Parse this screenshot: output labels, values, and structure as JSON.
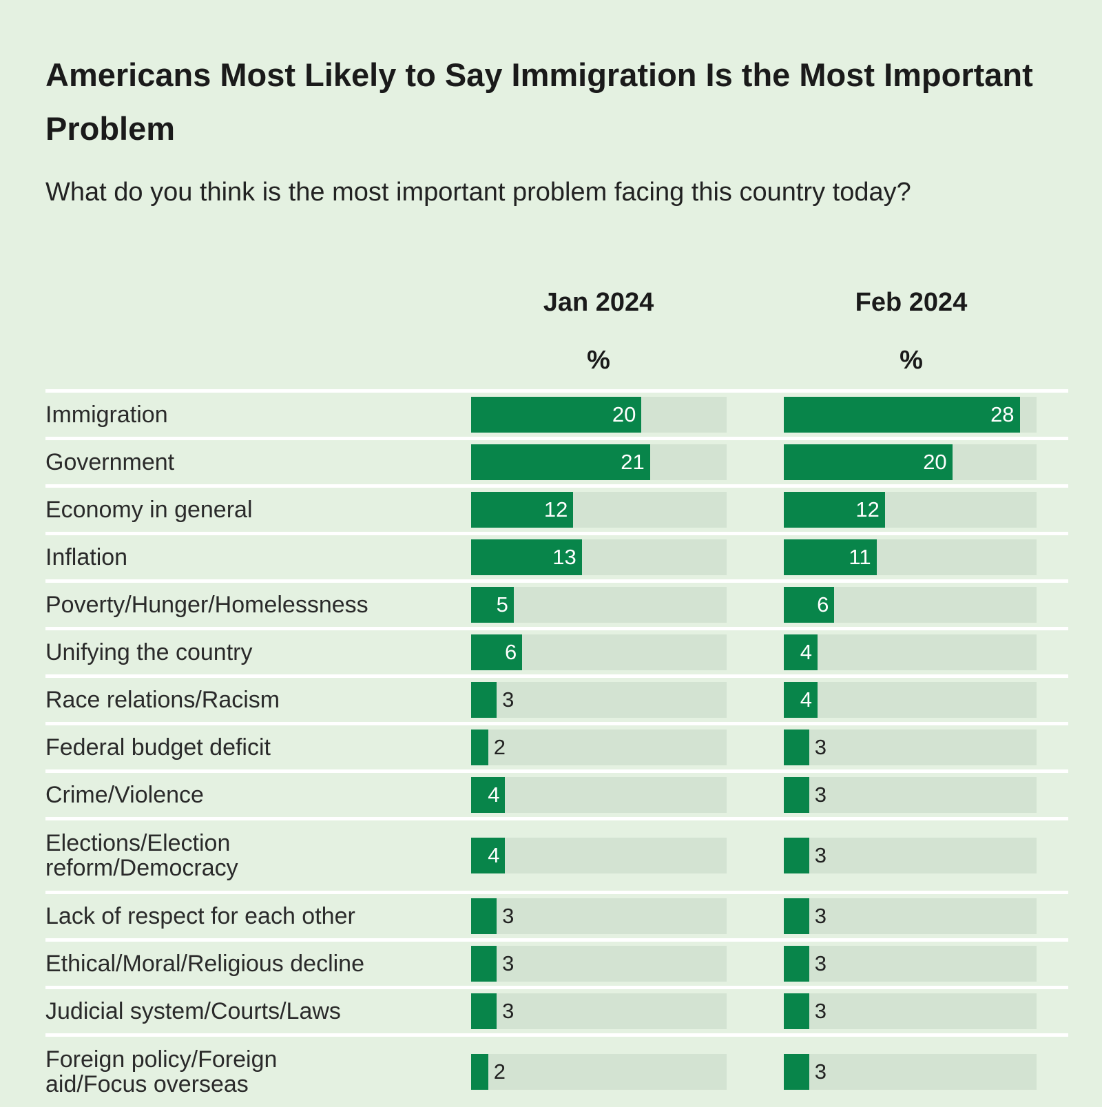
{
  "chart_data": {
    "type": "bar",
    "title": "Americans Most Likely to Say Immigration Is the Most Important Problem",
    "subtitle": "What do you think is the most important problem facing this country today?",
    "unit_label": "%",
    "xlim": [
      0,
      30
    ],
    "colors": {
      "bar": "#08854a",
      "track": "#d3e3d2",
      "background": "#e4f1e1"
    },
    "categories": [
      "Immigration",
      "Government",
      "Economy in general",
      "Inflation",
      "Poverty/Hunger/Homelessness",
      "Unifying the country",
      "Race relations/Racism",
      "Federal budget deficit",
      "Crime/Violence",
      "Elections/Election reform/Democracy",
      "Lack of respect for each other",
      "Ethical/Moral/Religious decline",
      "Judicial system/Courts/Laws",
      "Foreign policy/Foreign aid/Focus overseas"
    ],
    "series": [
      {
        "name": "Jan 2024",
        "values": [
          20,
          21,
          12,
          13,
          5,
          6,
          3,
          2,
          4,
          4,
          3,
          3,
          3,
          2
        ]
      },
      {
        "name": "Feb 2024",
        "values": [
          28,
          20,
          12,
          11,
          6,
          4,
          4,
          3,
          3,
          3,
          3,
          3,
          3,
          3
        ]
      }
    ]
  }
}
